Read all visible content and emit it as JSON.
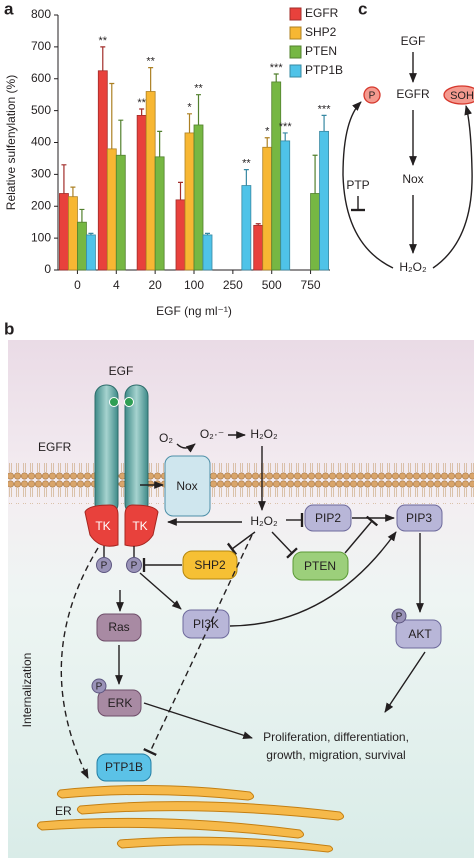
{
  "panel_labels": {
    "a": "a",
    "b": "b",
    "c": "c"
  },
  "chart_data": {
    "type": "bar",
    "ylabel": "Relative sulfenylation (%)",
    "xlabel": "EGF (ng ml⁻¹)",
    "categories": [
      "0",
      "4",
      "20",
      "100",
      "250",
      "500",
      "750"
    ],
    "ylim": [
      0,
      800
    ],
    "yticks": [
      0,
      100,
      200,
      300,
      400,
      500,
      600,
      700,
      800
    ],
    "series": [
      {
        "name": "EGFR",
        "color": "#e8413c",
        "values": [
          240,
          625,
          485,
          220,
          null,
          140,
          null
        ],
        "errors": [
          90,
          75,
          20,
          55,
          null,
          5,
          null
        ],
        "stars": [
          null,
          "**",
          "**",
          null,
          null,
          null,
          null
        ]
      },
      {
        "name": "SHP2",
        "color": "#f7b733",
        "values": [
          230,
          380,
          560,
          430,
          null,
          385,
          null
        ],
        "errors": [
          30,
          205,
          75,
          60,
          null,
          30,
          null
        ],
        "stars": [
          null,
          null,
          "**",
          "*",
          null,
          "*",
          null
        ]
      },
      {
        "name": "PTEN",
        "color": "#76b743",
        "values": [
          150,
          360,
          355,
          455,
          null,
          590,
          240
        ],
        "errors": [
          40,
          110,
          80,
          95,
          null,
          25,
          120
        ],
        "stars": [
          null,
          null,
          null,
          "**",
          null,
          "***",
          null
        ]
      },
      {
        "name": "PTP1B",
        "color": "#4fc3e8",
        "values": [
          110,
          null,
          null,
          110,
          265,
          405,
          435
        ],
        "errors": [
          5,
          null,
          null,
          5,
          50,
          25,
          50
        ],
        "stars": [
          null,
          null,
          null,
          null,
          "**",
          "***",
          "***"
        ]
      }
    ]
  },
  "panel_c": {
    "egf": "EGF",
    "egfr": "EGFR",
    "p": "P",
    "soh": "SOH",
    "nox": "Nox",
    "ptp": "PTP",
    "h2o2": "H₂O₂"
  },
  "panel_b": {
    "egf": "EGF",
    "egfr": "EGFR",
    "o2": "O₂",
    "superoxide": "O₂·⁻",
    "h2o2_top": "H₂O₂",
    "nox": "Nox",
    "tk_left": "TK",
    "tk_right": "TK",
    "p_left": "P",
    "p_right": "P",
    "h2o2_mid": "H₂O₂",
    "shp2": "SHP2",
    "pten": "PTEN",
    "pip2": "PIP2",
    "pip3": "PIP3",
    "ras": "Ras",
    "pi3k": "PI3K",
    "erk": "ERK",
    "p_erk": "P",
    "akt": "AKT",
    "p_akt": "P",
    "internalization": "Internalization",
    "outcome_line1": "Proliferation, differentiation,",
    "outcome_line2": "growth, migration, survival",
    "ptp1b": "PTP1B",
    "er": "ER"
  }
}
